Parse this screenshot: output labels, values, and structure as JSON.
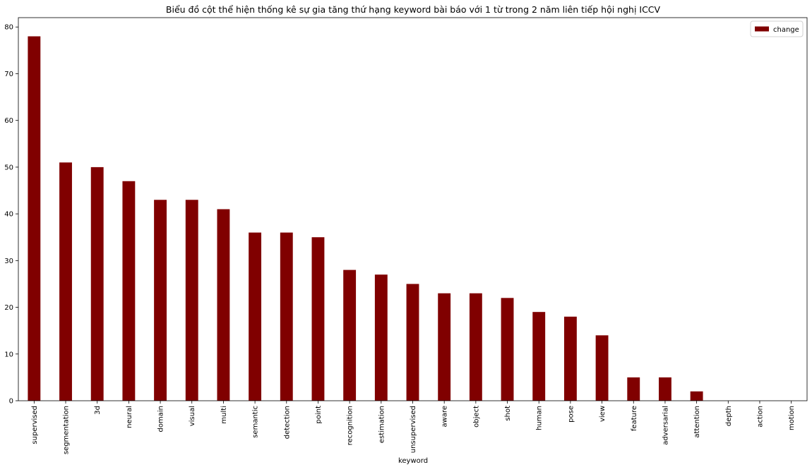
{
  "chart_data": {
    "type": "bar",
    "title": "Biểu đồ cột thể hiện thống kê sự gia tăng thứ hạng keyword bài báo với 1 từ trong 2 năm liên tiếp hội nghị ICCV",
    "xlabel": "keyword",
    "ylabel": "",
    "categories": [
      "supervised",
      "segmentation",
      "3d",
      "neural",
      "domain",
      "visual",
      "multi",
      "semantic",
      "detection",
      "point",
      "recognition",
      "estimation",
      "unsupervised",
      "aware",
      "object",
      "shot",
      "human",
      "pose",
      "view",
      "feature",
      "adversarial",
      "attention",
      "depth",
      "action",
      "motion"
    ],
    "series": [
      {
        "name": "change",
        "values": [
          78,
          51,
          50,
          47,
          43,
          43,
          41,
          36,
          36,
          35,
          28,
          27,
          25,
          23,
          23,
          22,
          19,
          18,
          14,
          5,
          5,
          2,
          0,
          0,
          0
        ],
        "color": "#800000"
      }
    ],
    "ylim": [
      0,
      82
    ],
    "yticks": [
      0,
      10,
      20,
      30,
      40,
      50,
      60,
      70,
      80
    ],
    "grid": false,
    "legend": "top-right"
  }
}
